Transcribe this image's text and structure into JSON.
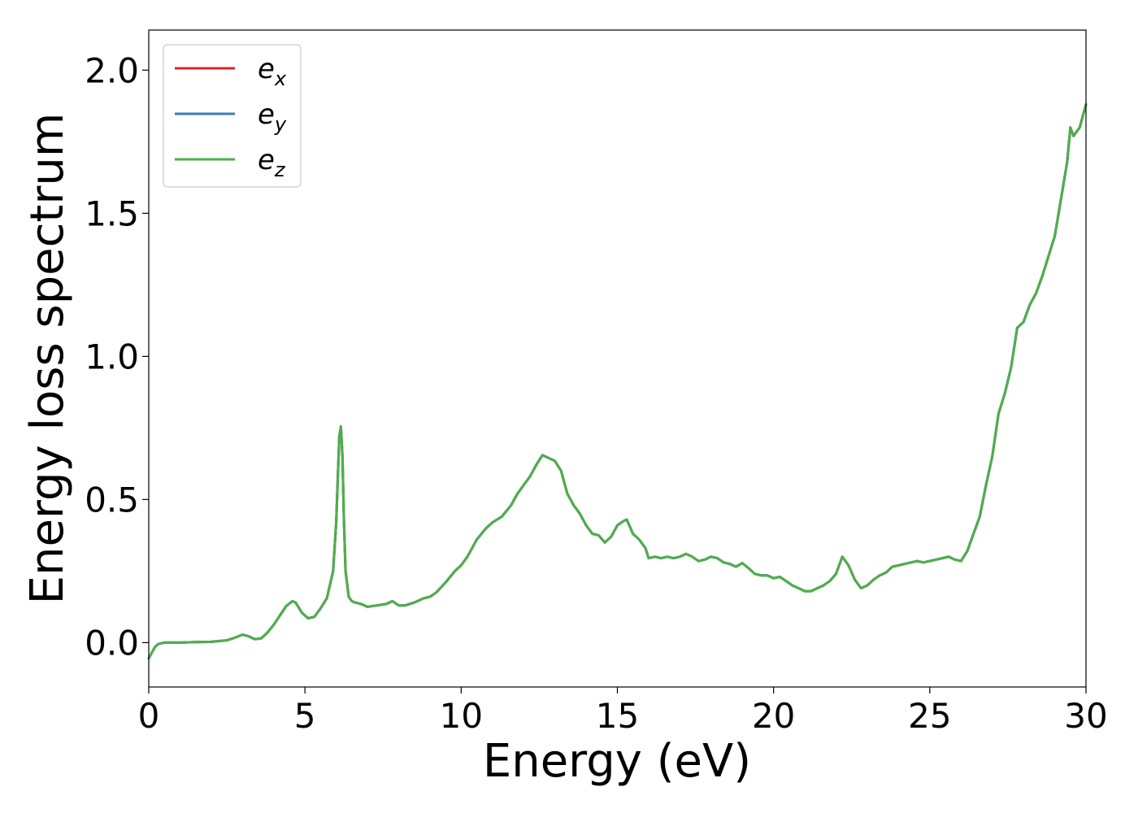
{
  "chart_data": {
    "type": "line",
    "title": "",
    "xlabel": "Energy (eV)",
    "ylabel": "Energy loss spectrum",
    "xlim": [
      0,
      30
    ],
    "ylim": [
      -0.155,
      2.14
    ],
    "xticks": [
      0,
      5,
      10,
      15,
      20,
      25,
      30
    ],
    "xtick_labels": [
      "0",
      "5",
      "10",
      "15",
      "20",
      "25",
      "30"
    ],
    "yticks": [
      0.0,
      0.5,
      1.0,
      1.5,
      2.0
    ],
    "ytick_labels": [
      "0.0",
      "0.5",
      "1.0",
      "1.5",
      "2.0"
    ],
    "grid": false,
    "legend_position": "top-left",
    "legend": [
      {
        "base": "e",
        "sub": "x",
        "color": "#d62728"
      },
      {
        "base": "e",
        "sub": "y",
        "color": "#377eb8"
      },
      {
        "base": "e",
        "sub": "z",
        "color": "#4daf4a"
      }
    ],
    "x": [
      0.0,
      0.1,
      0.2,
      0.3,
      0.5,
      0.8,
      1.0,
      1.5,
      2.0,
      2.5,
      2.7,
      3.0,
      3.2,
      3.4,
      3.6,
      3.8,
      4.0,
      4.2,
      4.4,
      4.6,
      4.7,
      4.9,
      5.1,
      5.3,
      5.5,
      5.7,
      5.9,
      6.0,
      6.1,
      6.15,
      6.2,
      6.25,
      6.3,
      6.4,
      6.5,
      6.6,
      6.8,
      7.0,
      7.3,
      7.6,
      7.8,
      8.0,
      8.2,
      8.5,
      8.8,
      9.0,
      9.2,
      9.5,
      9.8,
      10.0,
      10.2,
      10.5,
      10.8,
      11.0,
      11.3,
      11.6,
      11.8,
      12.0,
      12.2,
      12.4,
      12.6,
      12.8,
      13.0,
      13.2,
      13.4,
      13.6,
      13.8,
      14.0,
      14.2,
      14.4,
      14.6,
      14.8,
      15.0,
      15.2,
      15.3,
      15.5,
      15.7,
      15.9,
      16.0,
      16.2,
      16.4,
      16.6,
      16.8,
      17.0,
      17.2,
      17.4,
      17.6,
      17.8,
      18.0,
      18.2,
      18.4,
      18.6,
      18.8,
      19.0,
      19.2,
      19.4,
      19.6,
      19.8,
      20.0,
      20.2,
      20.4,
      20.6,
      20.8,
      21.0,
      21.2,
      21.4,
      21.6,
      21.8,
      22.0,
      22.2,
      22.4,
      22.6,
      22.8,
      23.0,
      23.2,
      23.4,
      23.6,
      23.8,
      24.0,
      24.2,
      24.4,
      24.6,
      24.8,
      25.0,
      25.2,
      25.4,
      25.6,
      25.8,
      26.0,
      26.2,
      26.4,
      26.6,
      26.8,
      27.0,
      27.2,
      27.4,
      27.6,
      27.8,
      28.0,
      28.2,
      28.4,
      28.6,
      28.8,
      29.0,
      29.2,
      29.4,
      29.5,
      29.6,
      29.8,
      30.0
    ],
    "series": [
      {
        "name": "e_x",
        "color": "#d62728",
        "values": [
          -0.055,
          -0.035,
          -0.015,
          -0.005,
          0.0,
          0.0,
          0.0,
          0.002,
          0.003,
          0.008,
          0.015,
          0.028,
          0.022,
          0.012,
          0.015,
          0.035,
          0.062,
          0.095,
          0.128,
          0.145,
          0.14,
          0.105,
          0.085,
          0.09,
          0.12,
          0.155,
          0.25,
          0.42,
          0.72,
          0.755,
          0.65,
          0.42,
          0.25,
          0.16,
          0.145,
          0.14,
          0.135,
          0.125,
          0.13,
          0.135,
          0.145,
          0.13,
          0.13,
          0.14,
          0.155,
          0.16,
          0.175,
          0.21,
          0.25,
          0.27,
          0.3,
          0.36,
          0.4,
          0.42,
          0.44,
          0.48,
          0.52,
          0.55,
          0.58,
          0.62,
          0.655,
          0.645,
          0.635,
          0.6,
          0.52,
          0.48,
          0.45,
          0.41,
          0.38,
          0.375,
          0.35,
          0.37,
          0.41,
          0.425,
          0.43,
          0.38,
          0.36,
          0.33,
          0.295,
          0.3,
          0.295,
          0.3,
          0.295,
          0.3,
          0.31,
          0.3,
          0.285,
          0.29,
          0.3,
          0.295,
          0.28,
          0.275,
          0.265,
          0.278,
          0.26,
          0.24,
          0.235,
          0.235,
          0.225,
          0.23,
          0.215,
          0.2,
          0.19,
          0.18,
          0.18,
          0.19,
          0.2,
          0.215,
          0.24,
          0.3,
          0.27,
          0.22,
          0.19,
          0.2,
          0.22,
          0.235,
          0.245,
          0.265,
          0.27,
          0.275,
          0.28,
          0.285,
          0.28,
          0.285,
          0.29,
          0.295,
          0.3,
          0.29,
          0.285,
          0.32,
          0.38,
          0.44,
          0.55,
          0.65,
          0.8,
          0.87,
          0.96,
          1.1,
          1.12,
          1.18,
          1.22,
          1.28,
          1.35,
          1.42,
          1.55,
          1.68,
          1.8,
          1.77,
          1.8,
          1.88
        ]
      },
      {
        "name": "e_y",
        "color": "#377eb8",
        "values": [
          -0.055,
          -0.035,
          -0.015,
          -0.005,
          0.0,
          0.0,
          0.0,
          0.002,
          0.003,
          0.008,
          0.015,
          0.028,
          0.022,
          0.012,
          0.015,
          0.035,
          0.062,
          0.095,
          0.128,
          0.145,
          0.14,
          0.105,
          0.085,
          0.09,
          0.12,
          0.155,
          0.25,
          0.42,
          0.72,
          0.755,
          0.65,
          0.42,
          0.25,
          0.16,
          0.145,
          0.14,
          0.135,
          0.125,
          0.13,
          0.135,
          0.145,
          0.13,
          0.13,
          0.14,
          0.155,
          0.16,
          0.175,
          0.21,
          0.25,
          0.27,
          0.3,
          0.36,
          0.4,
          0.42,
          0.44,
          0.48,
          0.52,
          0.55,
          0.58,
          0.62,
          0.655,
          0.645,
          0.635,
          0.6,
          0.52,
          0.48,
          0.45,
          0.41,
          0.38,
          0.375,
          0.35,
          0.37,
          0.41,
          0.425,
          0.43,
          0.38,
          0.36,
          0.33,
          0.295,
          0.3,
          0.295,
          0.3,
          0.295,
          0.3,
          0.31,
          0.3,
          0.285,
          0.29,
          0.3,
          0.295,
          0.28,
          0.275,
          0.265,
          0.278,
          0.26,
          0.24,
          0.235,
          0.235,
          0.225,
          0.23,
          0.215,
          0.2,
          0.19,
          0.18,
          0.18,
          0.19,
          0.2,
          0.215,
          0.24,
          0.3,
          0.27,
          0.22,
          0.19,
          0.2,
          0.22,
          0.235,
          0.245,
          0.265,
          0.27,
          0.275,
          0.28,
          0.285,
          0.28,
          0.285,
          0.29,
          0.295,
          0.3,
          0.29,
          0.285,
          0.32,
          0.38,
          0.44,
          0.55,
          0.65,
          0.8,
          0.87,
          0.96,
          1.1,
          1.12,
          1.18,
          1.22,
          1.28,
          1.35,
          1.42,
          1.55,
          1.68,
          1.8,
          1.77,
          1.8,
          1.88
        ]
      },
      {
        "name": "e_z",
        "color": "#4daf4a",
        "values": [
          -0.055,
          -0.035,
          -0.015,
          -0.005,
          0.0,
          0.0,
          0.0,
          0.002,
          0.003,
          0.008,
          0.015,
          0.028,
          0.022,
          0.012,
          0.015,
          0.035,
          0.062,
          0.095,
          0.128,
          0.145,
          0.14,
          0.105,
          0.085,
          0.09,
          0.12,
          0.155,
          0.25,
          0.42,
          0.72,
          0.755,
          0.65,
          0.42,
          0.25,
          0.16,
          0.145,
          0.14,
          0.135,
          0.125,
          0.13,
          0.135,
          0.145,
          0.13,
          0.13,
          0.14,
          0.155,
          0.16,
          0.175,
          0.21,
          0.25,
          0.27,
          0.3,
          0.36,
          0.4,
          0.42,
          0.44,
          0.48,
          0.52,
          0.55,
          0.58,
          0.62,
          0.655,
          0.645,
          0.635,
          0.6,
          0.52,
          0.48,
          0.45,
          0.41,
          0.38,
          0.375,
          0.35,
          0.37,
          0.41,
          0.425,
          0.43,
          0.38,
          0.36,
          0.33,
          0.295,
          0.3,
          0.295,
          0.3,
          0.295,
          0.3,
          0.31,
          0.3,
          0.285,
          0.29,
          0.3,
          0.295,
          0.28,
          0.275,
          0.265,
          0.278,
          0.26,
          0.24,
          0.235,
          0.235,
          0.225,
          0.23,
          0.215,
          0.2,
          0.19,
          0.18,
          0.18,
          0.19,
          0.2,
          0.215,
          0.24,
          0.3,
          0.27,
          0.22,
          0.19,
          0.2,
          0.22,
          0.235,
          0.245,
          0.265,
          0.27,
          0.275,
          0.28,
          0.285,
          0.28,
          0.285,
          0.29,
          0.295,
          0.3,
          0.29,
          0.285,
          0.32,
          0.38,
          0.44,
          0.55,
          0.65,
          0.8,
          0.87,
          0.96,
          1.1,
          1.12,
          1.18,
          1.22,
          1.28,
          1.35,
          1.42,
          1.55,
          1.68,
          1.8,
          1.77,
          1.8,
          1.88
        ]
      }
    ]
  }
}
